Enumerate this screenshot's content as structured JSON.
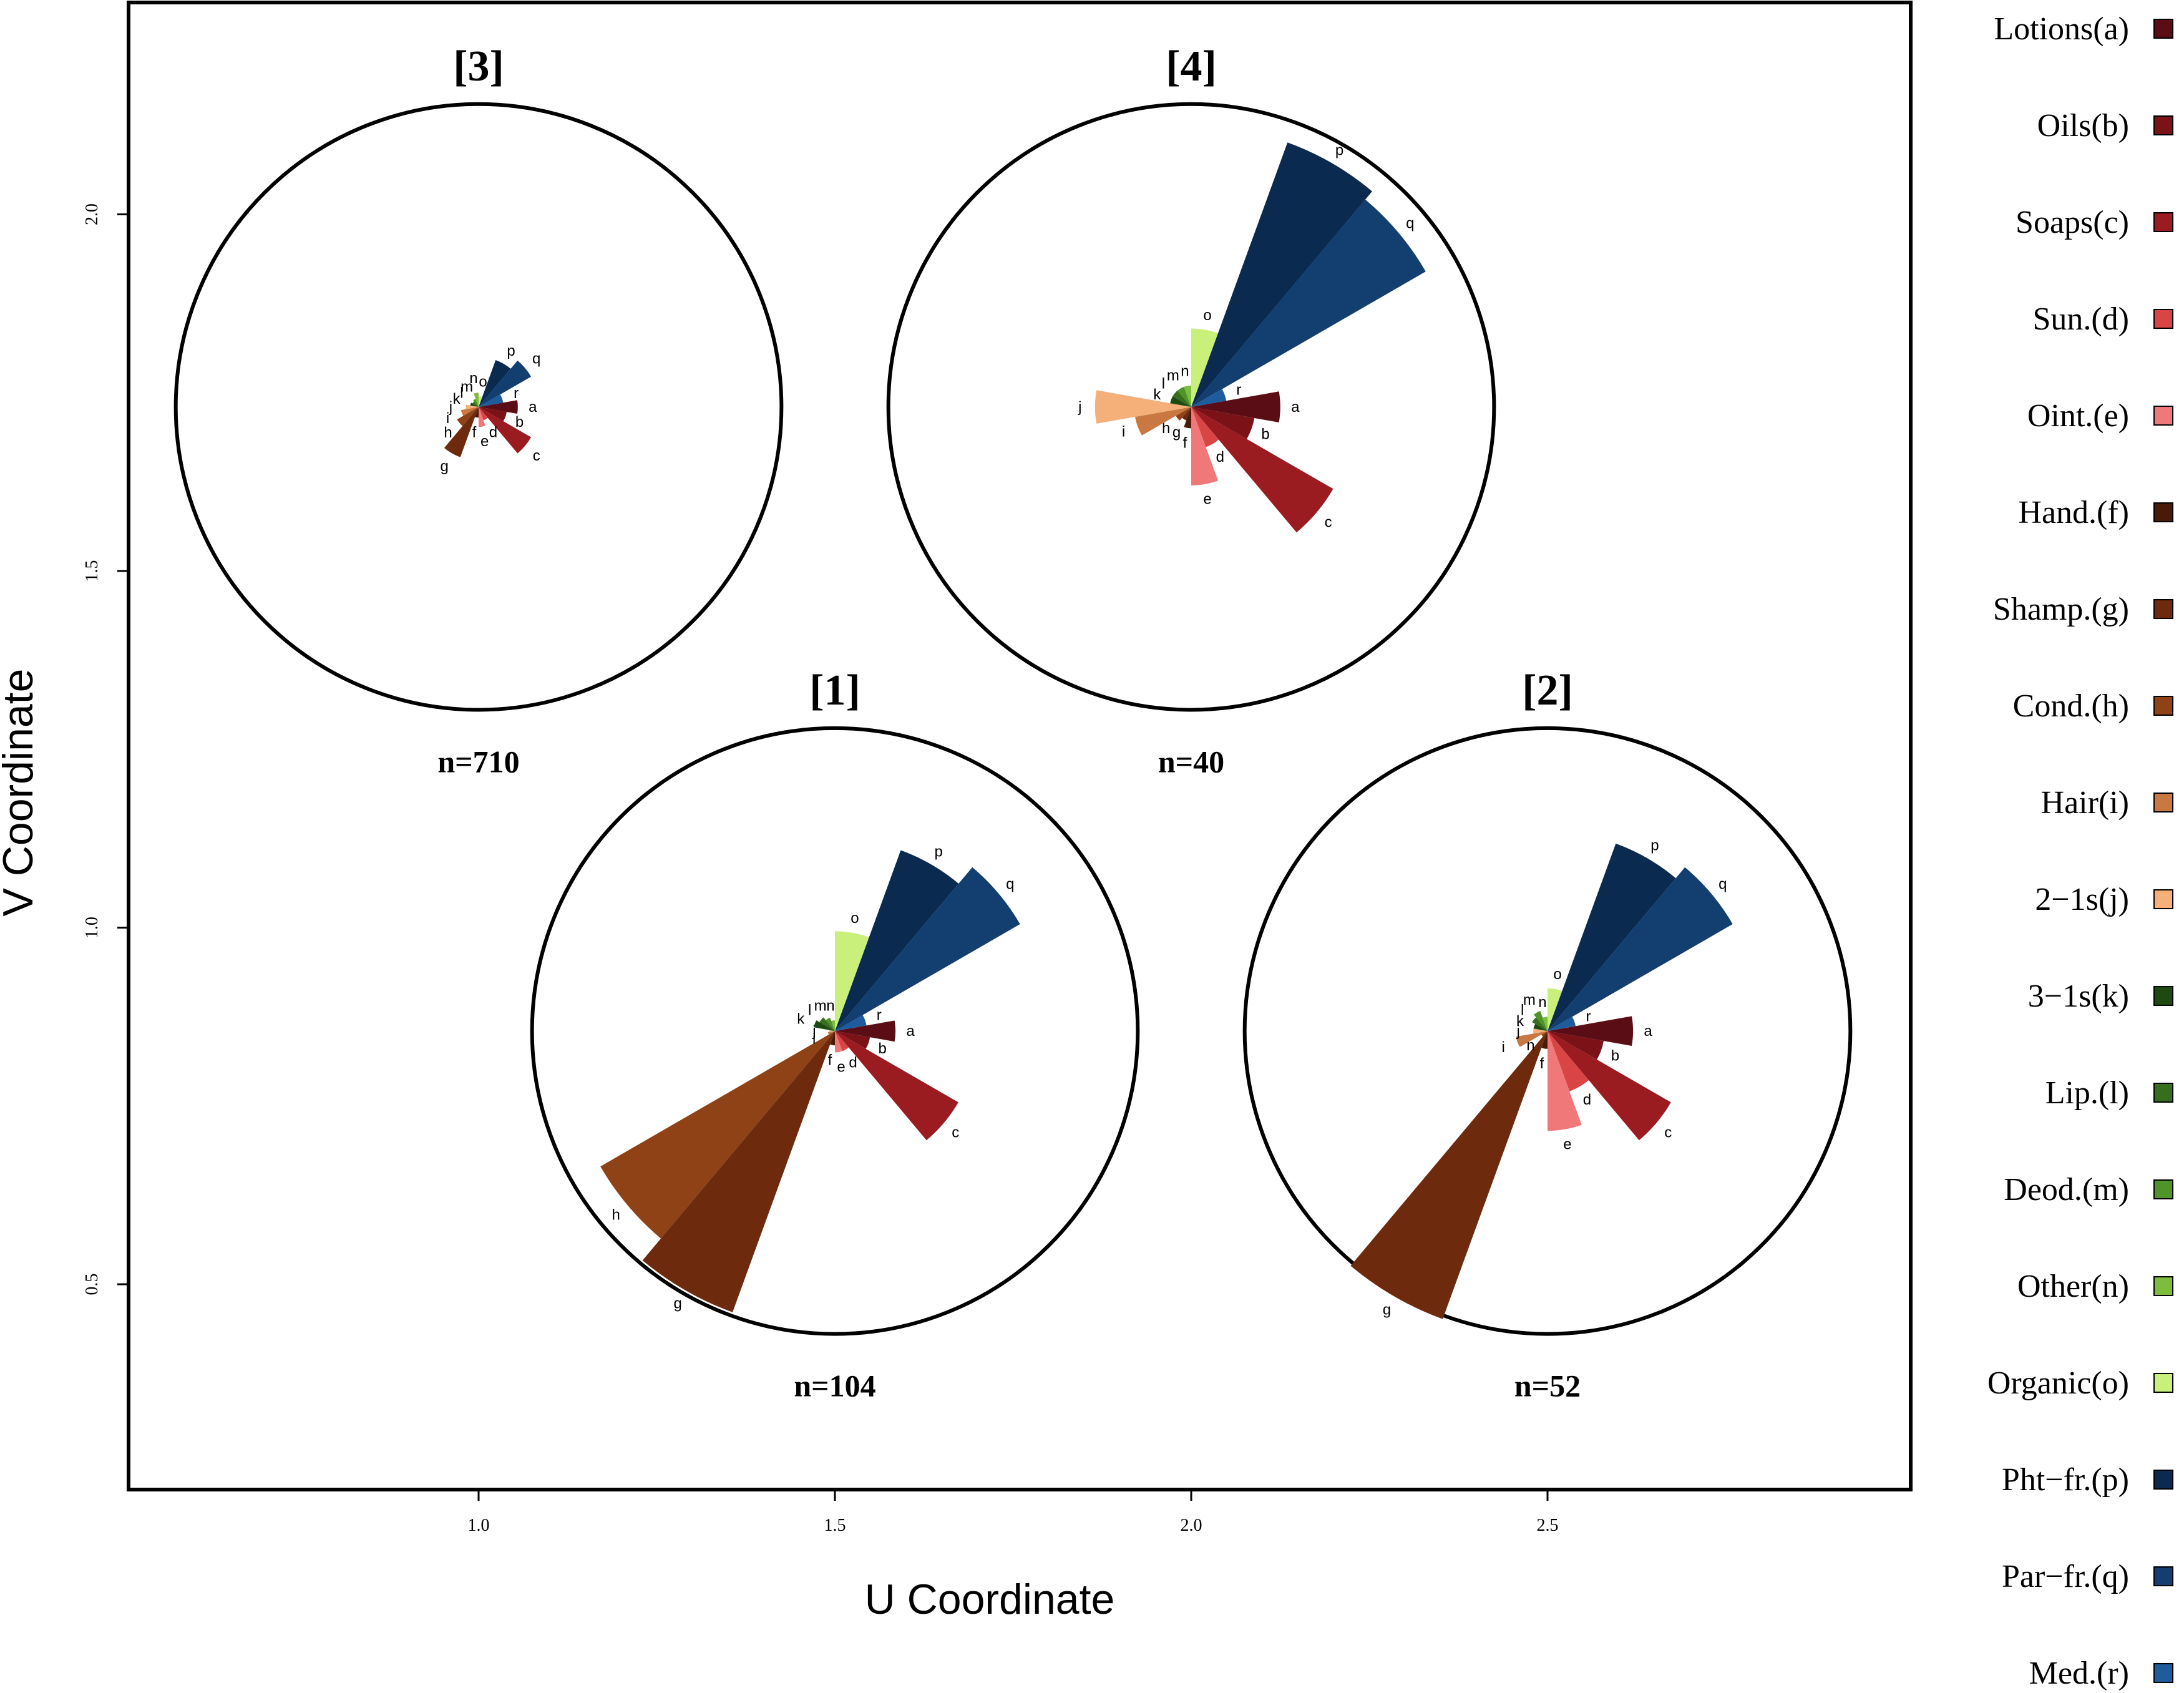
{
  "chart_data": {
    "type": "scatter",
    "variant": "star-glyph clusters on U/V coordinate plane",
    "xlabel": "U Coordinate",
    "ylabel": "V Coordinate",
    "xlim": [
      0.5,
      3.0
    ],
    "ylim": [
      0.2,
      2.3
    ],
    "xticks": [
      "1.0",
      "1.5",
      "2.0",
      "2.5"
    ],
    "xtick_values": [
      1.0,
      1.5,
      2.0,
      2.5
    ],
    "yticks": [
      "0.5",
      "1.0",
      "1.5",
      "2.0"
    ],
    "ytick_values": [
      0.5,
      1.0,
      1.5,
      2.0
    ],
    "legend_position": "right",
    "categories": [
      {
        "key": "a",
        "label": "Lotions(a)",
        "color": "#5a0d14"
      },
      {
        "key": "b",
        "label": "Oils(b)",
        "color": "#7a1218"
      },
      {
        "key": "c",
        "label": "Soaps(c)",
        "color": "#9b1c20"
      },
      {
        "key": "d",
        "label": "Sun.(d)",
        "color": "#d94545"
      },
      {
        "key": "e",
        "label": "Oint.(e)",
        "color": "#f07878"
      },
      {
        "key": "f",
        "label": "Hand.(f)",
        "color": "#4a1a08"
      },
      {
        "key": "g",
        "label": "Shamp.(g)",
        "color": "#6e2a0c"
      },
      {
        "key": "h",
        "label": "Cond.(h)",
        "color": "#8f4216"
      },
      {
        "key": "i",
        "label": "Hair(i)",
        "color": "#c87840"
      },
      {
        "key": "j",
        "label": "2−1s(j)",
        "color": "#f5b07a"
      },
      {
        "key": "k",
        "label": "3−1s(k)",
        "color": "#1e4a12"
      },
      {
        "key": "l",
        "label": "Lip.(l)",
        "color": "#356e1c"
      },
      {
        "key": "m",
        "label": "Deod.(m)",
        "color": "#4f9428"
      },
      {
        "key": "n",
        "label": "Other(n)",
        "color": "#7cbd3e"
      },
      {
        "key": "o",
        "label": "Organic(o)",
        "color": "#c8f07a"
      },
      {
        "key": "p",
        "label": "Pht−fr.(p)",
        "color": "#0a2a50"
      },
      {
        "key": "q",
        "label": "Par−fr.(q)",
        "color": "#123f70"
      },
      {
        "key": "r",
        "label": "Med.(r)",
        "color": "#1e5c9e"
      }
    ],
    "clusters": [
      {
        "id": "3",
        "title": "[3]",
        "n_label": "n=710",
        "center": [
          1.0,
          1.73
        ],
        "circle_radius": 0.425,
        "values": {
          "a": 0.055,
          "b": 0.04,
          "c": 0.085,
          "d": 0.02,
          "e": 0.028,
          "f": 0.015,
          "g": 0.075,
          "h": 0.035,
          "i": 0.025,
          "j": 0.018,
          "k": 0.012,
          "l": 0.01,
          "m": 0.012,
          "n": 0.02,
          "o": 0.015,
          "p": 0.07,
          "q": 0.085,
          "r": 0.035
        }
      },
      {
        "id": "4",
        "title": "[4]",
        "n_label": "n=40",
        "center": [
          2.0,
          1.73
        ],
        "circle_radius": 0.425,
        "values": {
          "a": 0.125,
          "b": 0.09,
          "c": 0.23,
          "d": 0.06,
          "e": 0.11,
          "f": 0.03,
          "g": 0.02,
          "h": 0.025,
          "i": 0.08,
          "j": 0.135,
          "k": 0.03,
          "l": 0.03,
          "m": 0.03,
          "n": 0.03,
          "o": 0.11,
          "p": 0.395,
          "q": 0.38,
          "r": 0.05
        }
      },
      {
        "id": "1",
        "title": "[1]",
        "n_label": "n=104",
        "center": [
          1.5,
          0.855
        ],
        "circle_radius": 0.425,
        "values": {
          "a": 0.085,
          "b": 0.05,
          "c": 0.2,
          "d": 0.03,
          "e": 0.03,
          "f": 0.02,
          "g": 0.42,
          "h": 0.38,
          "i": 0.01,
          "j": 0.008,
          "k": 0.03,
          "l": 0.025,
          "m": 0.02,
          "n": 0.015,
          "o": 0.14,
          "p": 0.27,
          "q": 0.3,
          "r": 0.045
        }
      },
      {
        "id": "2",
        "title": "[2]",
        "n_label": "n=52",
        "center": [
          2.5,
          0.855
        ],
        "circle_radius": 0.425,
        "values": {
          "a": 0.12,
          "b": 0.08,
          "c": 0.2,
          "d": 0.09,
          "e": 0.14,
          "f": 0.025,
          "g": 0.43,
          "h": 0.01,
          "i": 0.045,
          "j": 0.02,
          "k": 0.02,
          "l": 0.025,
          "m": 0.03,
          "n": 0.02,
          "o": 0.06,
          "p": 0.28,
          "q": 0.3,
          "r": 0.04
        }
      }
    ]
  }
}
